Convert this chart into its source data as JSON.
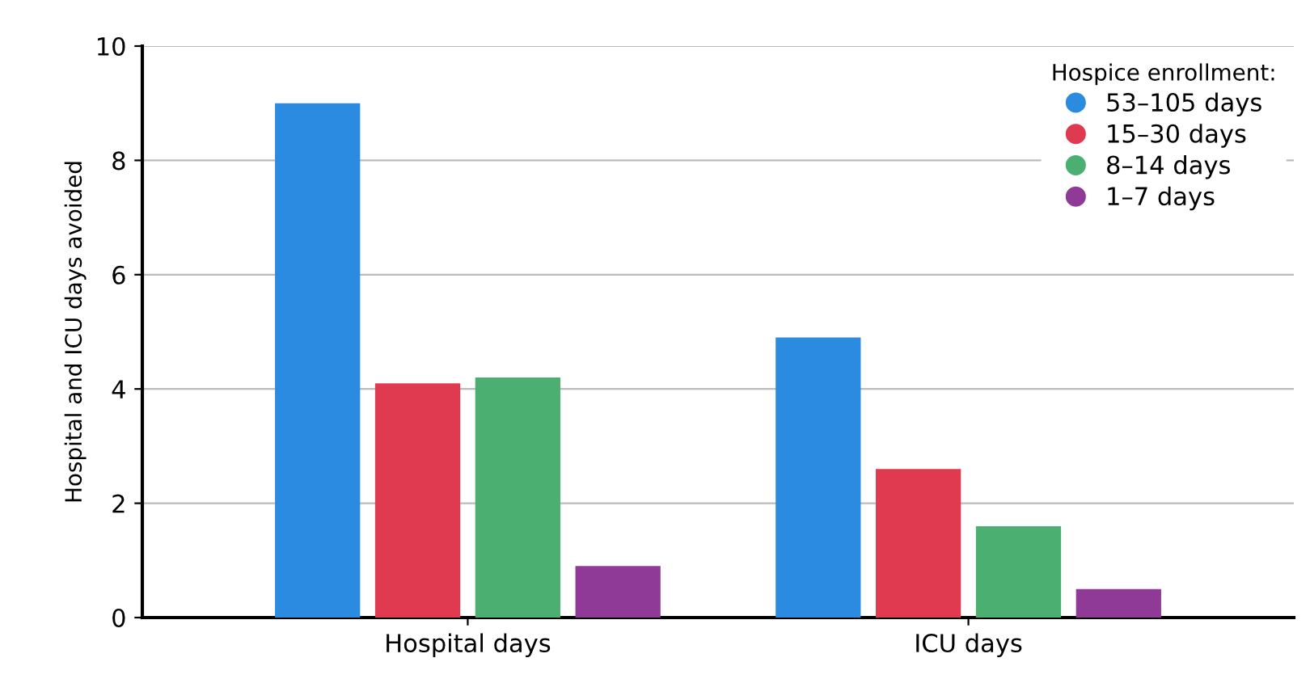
{
  "chart_data": {
    "type": "bar",
    "ylabel": "Hospital and ICU days avoided",
    "legend_title": "Hospice enrollment:",
    "categories": [
      "Hospital days",
      "ICU days"
    ],
    "series": [
      {
        "name": "53–105 days",
        "color": "#2a8be0",
        "values": [
          9.0,
          4.9
        ]
      },
      {
        "name": "15–30 days",
        "color": "#e03a50",
        "values": [
          4.1,
          2.6
        ]
      },
      {
        "name": "8–14 days",
        "color": "#4caf72",
        "values": [
          4.2,
          1.6
        ]
      },
      {
        "name": "1–7 days",
        "color": "#8e3a96",
        "values": [
          0.9,
          0.5
        ]
      }
    ],
    "ylim": [
      0,
      10
    ],
    "yticks": [
      0,
      2,
      4,
      6,
      8,
      10
    ],
    "grid": "y",
    "legend": "top right"
  }
}
